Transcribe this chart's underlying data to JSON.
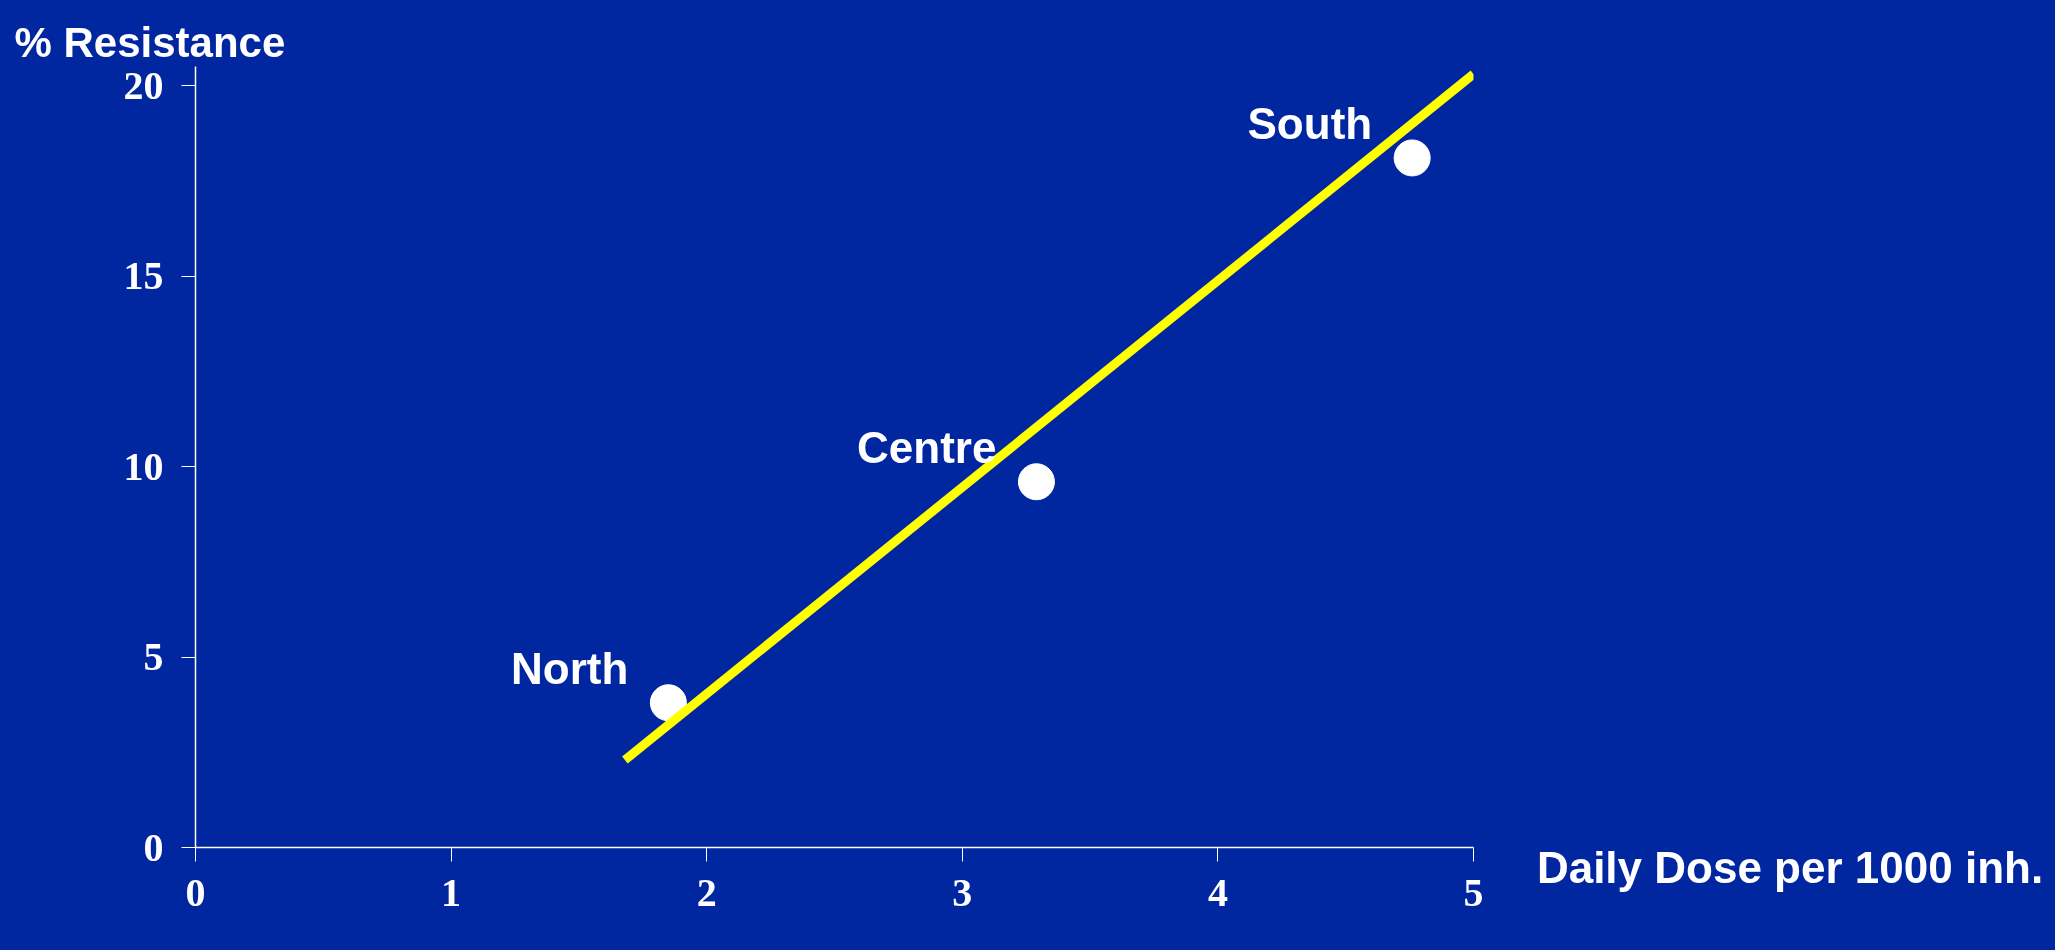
{
  "chart_data": {
    "type": "scatter",
    "xlabel": "Daily Dose per 1000 inh.",
    "ylabel": "% Resistance",
    "xlim": [
      0,
      5
    ],
    "xticks": [
      0,
      1,
      2,
      3,
      4,
      5
    ],
    "ylim": [
      0,
      20.5
    ],
    "yticks": [
      0,
      5,
      10,
      15,
      20
    ],
    "grid": false,
    "series": [
      {
        "marker": "circle",
        "color": "#ffffff",
        "x": [
          1.85,
          3.29,
          4.76
        ],
        "values": [
          3.8,
          9.6,
          18.1
        ]
      },
      {
        "type": "line",
        "color": "#ffff00",
        "x": [
          1.68,
          5.0
        ],
        "values": [
          2.3,
          20.3
        ],
        "line_style": "solid"
      }
    ],
    "annotations": [
      {
        "text": "North",
        "x": 1.85,
        "y": 3.8
      },
      {
        "text": "Centre",
        "x": 3.29,
        "y": 9.6
      },
      {
        "text": "South",
        "x": 4.76,
        "y": 18.1
      }
    ]
  }
}
